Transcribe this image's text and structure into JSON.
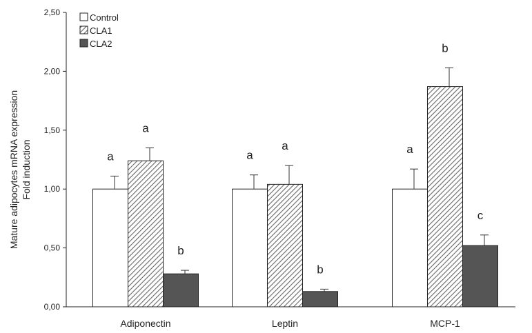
{
  "chart_data": {
    "type": "bar",
    "categories": [
      "Adiponectin",
      "Leptin",
      "MCP-1"
    ],
    "series": [
      {
        "name": "Control",
        "values": [
          1.0,
          1.0,
          1.0
        ],
        "errors": [
          0.11,
          0.12,
          0.17
        ],
        "labels": [
          "a",
          "a",
          "a"
        ],
        "fill": "#ffffff",
        "pattern": "none"
      },
      {
        "name": "CLA1",
        "values": [
          1.24,
          1.04,
          1.87
        ],
        "errors": [
          0.11,
          0.16,
          0.16
        ],
        "labels": [
          "a",
          "a",
          "b"
        ],
        "fill": "#ffffff",
        "pattern": "diagonal-hatch"
      },
      {
        "name": "CLA2",
        "values": [
          0.28,
          0.13,
          0.52
        ],
        "errors": [
          0.03,
          0.02,
          0.09
        ],
        "labels": [
          "b",
          "b",
          "c"
        ],
        "fill": "#555555",
        "pattern": "none"
      }
    ],
    "ylabel": [
      "Mature adipocytes mRNA expression",
      "Fold induction"
    ],
    "ylim": [
      0,
      2.5
    ],
    "yticks": [
      "0,00",
      "0,50",
      "1,00",
      "1,50",
      "2,00",
      "2,50"
    ],
    "ytick_values": [
      0,
      0.5,
      1.0,
      1.5,
      2.0,
      2.5
    ],
    "legend_position": "top-left",
    "grid": false
  }
}
